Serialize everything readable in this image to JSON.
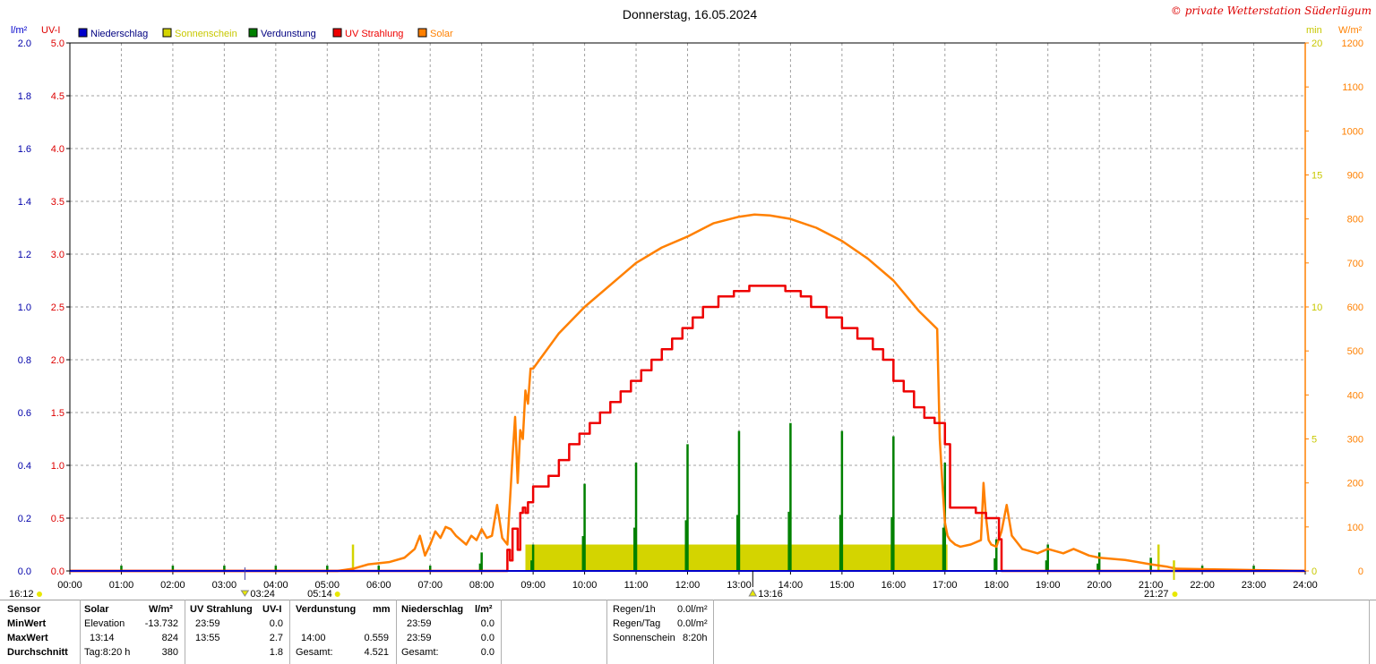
{
  "chart_data": {
    "type": "line",
    "title": "Donnerstag, 16.05.2024",
    "copyright": "© private Wetterstation Süderlügum",
    "axes": {
      "left1_unit": "l/m²",
      "left1_ticks": [
        "0.0",
        "0.2",
        "0.4",
        "0.6",
        "0.8",
        "1.0",
        "1.2",
        "1.4",
        "1.6",
        "1.8",
        "2.0"
      ],
      "left2_unit": "UV-I",
      "left2_ticks": [
        "0.0",
        "0.5",
        "1.0",
        "1.5",
        "2.0",
        "2.5",
        "3.0",
        "3.5",
        "4.0",
        "4.5",
        "5.0"
      ],
      "right1_unit": "min",
      "right1_ticks": [
        "0",
        "5",
        "10",
        "15",
        "20"
      ],
      "right2_unit": "W/m²",
      "right2_ticks": [
        "0",
        "100",
        "200",
        "300",
        "400",
        "500",
        "600",
        "700",
        "800",
        "900",
        "1000",
        "1100",
        "1200"
      ],
      "x_ticks": [
        "00:00",
        "01:00",
        "02:00",
        "03:00",
        "04:00",
        "05:00",
        "06:00",
        "07:00",
        "08:00",
        "09:00",
        "10:00",
        "11:00",
        "12:00",
        "13:00",
        "14:00",
        "15:00",
        "16:00",
        "17:00",
        "18:00",
        "19:00",
        "20:00",
        "21:00",
        "22:00",
        "23:00",
        "24:00"
      ],
      "x_range_hours": [
        0,
        24
      ],
      "solar_range": [
        0,
        1200
      ],
      "uv_range": [
        0,
        5
      ],
      "sun_minutes_range": [
        0,
        20
      ],
      "grid": true
    },
    "legend": [
      {
        "name": "Niederschlag",
        "color": "#0000cc"
      },
      {
        "name": "Sonnenschein",
        "color": "#d4d400"
      },
      {
        "name": "Verdunstung",
        "color": "#008000"
      },
      {
        "name": "UV Strahlung",
        "color": "#ee0000"
      },
      {
        "name": "Solar",
        "color": "#ff8000"
      }
    ],
    "markers": {
      "left_time": "16:12",
      "twilight_start": "03:24",
      "sunrise": "05:14",
      "solar_noon": "13:16",
      "sunset": "21:27"
    },
    "series": [
      {
        "name": "Solar",
        "unit": "W/m²",
        "color": "#ff8000",
        "x": [
          0,
          5.2,
          5.5,
          5.8,
          6.2,
          6.5,
          6.7,
          6.8,
          6.9,
          7.0,
          7.1,
          7.2,
          7.3,
          7.4,
          7.5,
          7.6,
          7.7,
          7.8,
          7.9,
          8.0,
          8.1,
          8.2,
          8.3,
          8.4,
          8.5,
          8.6,
          8.65,
          8.7,
          8.75,
          8.8,
          8.85,
          8.9,
          8.95,
          9.0,
          9.5,
          10.0,
          10.5,
          11.0,
          11.5,
          12.0,
          12.5,
          13.0,
          13.3,
          13.6,
          14.0,
          14.5,
          15.0,
          15.5,
          16.0,
          16.5,
          16.85,
          16.9,
          16.95,
          17.0,
          17.05,
          17.1,
          17.2,
          17.3,
          17.5,
          17.7,
          17.75,
          17.8,
          17.85,
          17.9,
          18.0,
          18.1,
          18.2,
          18.3,
          18.5,
          18.8,
          19.0,
          19.3,
          19.5,
          19.8,
          20.0,
          20.5,
          21.0,
          21.3,
          21.5,
          24
        ],
        "y": [
          0,
          0,
          5,
          15,
          20,
          30,
          50,
          80,
          35,
          60,
          90,
          75,
          100,
          95,
          80,
          70,
          60,
          80,
          70,
          95,
          75,
          80,
          150,
          75,
          60,
          260,
          350,
          200,
          320,
          300,
          410,
          380,
          460,
          460,
          540,
          600,
          650,
          700,
          735,
          760,
          790,
          805,
          810,
          808,
          800,
          780,
          750,
          710,
          660,
          590,
          550,
          300,
          200,
          110,
          80,
          70,
          60,
          55,
          60,
          70,
          200,
          120,
          70,
          60,
          55,
          90,
          150,
          80,
          50,
          40,
          50,
          40,
          50,
          35,
          30,
          25,
          15,
          10,
          5,
          0
        ]
      },
      {
        "name": "UV Strahlung",
        "unit": "UV-I",
        "color": "#ee0000",
        "x": [
          0,
          8.45,
          8.5,
          8.55,
          8.6,
          8.7,
          8.75,
          8.8,
          8.85,
          8.9,
          9.0,
          9.1,
          9.3,
          9.5,
          9.7,
          9.9,
          10.1,
          10.3,
          10.5,
          10.7,
          10.9,
          11.1,
          11.3,
          11.5,
          11.7,
          11.9,
          12.1,
          12.3,
          12.6,
          12.9,
          13.2,
          13.5,
          13.9,
          14.2,
          14.4,
          14.7,
          15.0,
          15.3,
          15.6,
          15.8,
          16.0,
          16.2,
          16.4,
          16.6,
          16.8,
          17.0,
          17.1,
          17.2,
          17.6,
          17.8,
          17.9,
          18.05,
          18.1,
          24
        ],
        "y": [
          0,
          0,
          0.2,
          0.1,
          0.4,
          0.2,
          0.55,
          0.6,
          0.55,
          0.65,
          0.8,
          0.8,
          0.9,
          1.05,
          1.2,
          1.3,
          1.4,
          1.5,
          1.6,
          1.7,
          1.8,
          1.9,
          2.0,
          2.1,
          2.2,
          2.3,
          2.4,
          2.5,
          2.6,
          2.65,
          2.7,
          2.7,
          2.65,
          2.6,
          2.5,
          2.4,
          2.3,
          2.2,
          2.1,
          2.0,
          1.8,
          1.7,
          1.55,
          1.45,
          1.4,
          1.2,
          0.6,
          0.6,
          0.55,
          0.5,
          0.5,
          0.3,
          0,
          0
        ]
      },
      {
        "name": "Sonnenschein",
        "unit": "min",
        "blocks": [
          [
            8.85,
            17.05,
            1
          ]
        ],
        "spikes": [
          [
            5.5,
            1
          ],
          [
            21.15,
            1
          ],
          [
            21.45,
            0.4
          ]
        ]
      },
      {
        "name": "Verdunstung",
        "unit": "l/m²",
        "spikes": [
          [
            1,
            0.02
          ],
          [
            2,
            0.02
          ],
          [
            3,
            0.02
          ],
          [
            4,
            0.02
          ],
          [
            5,
            0.02
          ],
          [
            6,
            0.02
          ],
          [
            7,
            0.02
          ],
          [
            8,
            0.07
          ],
          [
            9,
            0.1
          ],
          [
            10,
            0.33
          ],
          [
            11,
            0.41
          ],
          [
            12,
            0.48
          ],
          [
            13,
            0.53
          ],
          [
            14,
            0.56
          ],
          [
            15,
            0.53
          ],
          [
            16,
            0.51
          ],
          [
            17,
            0.41
          ],
          [
            18,
            0.12
          ],
          [
            19,
            0.1
          ],
          [
            20,
            0.07
          ],
          [
            21,
            0.05
          ],
          [
            22,
            0.02
          ],
          [
            23,
            0.02
          ]
        ]
      },
      {
        "name": "Niederschlag",
        "unit": "l/m²",
        "values": []
      }
    ]
  },
  "table": {
    "headers": {
      "sensor": "Sensor",
      "solar": "Solar",
      "solar_unit": "W/m²",
      "uv": "UV Strahlung",
      "uv_unit": "UV-I",
      "verd": "Verdunstung",
      "verd_unit": "mm",
      "nied": "Niederschlag",
      "nied_unit": "l/m²"
    },
    "rows": {
      "minwert": {
        "label": "MinWert",
        "solar_time": "Elevation",
        "solar_val": "-13.732",
        "uv_time": "23:59",
        "uv_val": "0.0",
        "verd_time": "",
        "verd_val": "",
        "nied_time": "23:59",
        "nied_val": "0.0"
      },
      "maxwert": {
        "label": "MaxWert",
        "solar_time": "13:14",
        "solar_val": "824",
        "uv_time": "13:55",
        "uv_val": "2.7",
        "verd_time": "14:00",
        "verd_val": "0.559",
        "nied_time": "23:59",
        "nied_val": "0.0"
      },
      "durchschnitt": {
        "label": "Durchschnitt",
        "solar_time": "Tag:8:20 h",
        "solar_val": "380",
        "uv_time": "",
        "uv_val": "1.8",
        "verd_time": "Gesamt:",
        "verd_val": "4.521",
        "nied_time": "Gesamt:",
        "nied_val": "0.0"
      }
    },
    "extra": {
      "regen1h_label": "Regen/1h",
      "regen1h_val": "0.0l/m²",
      "regentag_label": "Regen/Tag",
      "regentag_val": "0.0l/m²",
      "sonne_label": "Sonnenschein",
      "sonne_val": "8:20h"
    }
  }
}
